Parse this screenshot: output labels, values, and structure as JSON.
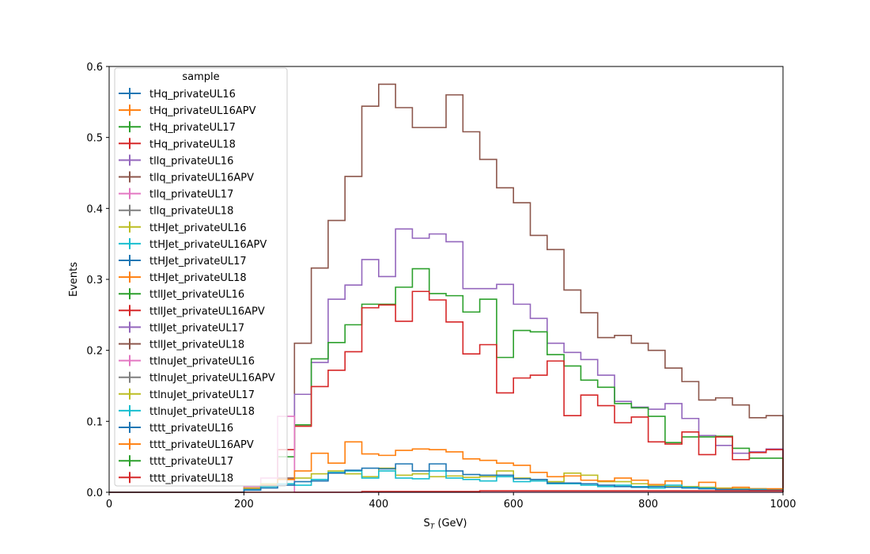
{
  "chart_data": {
    "type": "line",
    "style": "step-histogram",
    "xlabel": "S",
    "xlabel_sub": "T",
    "xlabel_unit": " (GeV)",
    "ylabel": "Events",
    "xlim": [
      0,
      1000
    ],
    "ylim": [
      0,
      0.6
    ],
    "xticks": [
      0,
      200,
      400,
      600,
      800,
      1000
    ],
    "yticks": [
      0.0,
      0.1,
      0.2,
      0.3,
      0.4,
      0.5,
      0.6
    ],
    "ytick_labels": [
      "0.0",
      "0.1",
      "0.2",
      "0.3",
      "0.4",
      "0.5",
      "0.6"
    ],
    "grid": false,
    "legend": {
      "title": "sample",
      "placement": "upper-left",
      "entries": [
        {
          "name": "tHq_privateUL16",
          "color": "#1f77b4"
        },
        {
          "name": "tHq_privateUL16APV",
          "color": "#ff7f0e"
        },
        {
          "name": "tHq_privateUL17",
          "color": "#2ca02c"
        },
        {
          "name": "tHq_privateUL18",
          "color": "#d62728"
        },
        {
          "name": "tllq_privateUL16",
          "color": "#9467bd"
        },
        {
          "name": "tllq_privateUL16APV",
          "color": "#8c564b"
        },
        {
          "name": "tllq_privateUL17",
          "color": "#e377c2"
        },
        {
          "name": "tllq_privateUL18",
          "color": "#7f7f7f"
        },
        {
          "name": "ttHJet_privateUL16",
          "color": "#bcbd22"
        },
        {
          "name": "ttHJet_privateUL16APV",
          "color": "#17becf"
        },
        {
          "name": "ttHJet_privateUL17",
          "color": "#1f77b4"
        },
        {
          "name": "ttHJet_privateUL18",
          "color": "#ff7f0e"
        },
        {
          "name": "ttllJet_privateUL16",
          "color": "#2ca02c"
        },
        {
          "name": "ttllJet_privateUL16APV",
          "color": "#d62728"
        },
        {
          "name": "ttllJet_privateUL17",
          "color": "#9467bd"
        },
        {
          "name": "ttllJet_privateUL18",
          "color": "#8c564b"
        },
        {
          "name": "ttlnuJet_privateUL16",
          "color": "#e377c2"
        },
        {
          "name": "ttlnuJet_privateUL16APV",
          "color": "#7f7f7f"
        },
        {
          "name": "ttlnuJet_privateUL17",
          "color": "#bcbd22"
        },
        {
          "name": "ttlnuJet_privateUL18",
          "color": "#17becf"
        },
        {
          "name": "tttt_privateUL16",
          "color": "#1f77b4"
        },
        {
          "name": "tttt_privateUL16APV",
          "color": "#ff7f0e"
        },
        {
          "name": "tttt_privateUL17",
          "color": "#2ca02c"
        },
        {
          "name": "tttt_privateUL18",
          "color": "#d62728"
        }
      ]
    },
    "bin_edges": [
      0,
      25,
      50,
      75,
      100,
      125,
      150,
      175,
      200,
      225,
      250,
      275,
      300,
      325,
      350,
      375,
      400,
      425,
      450,
      475,
      500,
      525,
      550,
      575,
      600,
      625,
      650,
      675,
      700,
      725,
      750,
      775,
      800,
      825,
      850,
      875,
      900,
      925,
      950,
      975,
      1000
    ],
    "series": [
      {
        "name": "ttllJet_privateUL18",
        "color": "#8c564b",
        "values": [
          0,
          0,
          0,
          0,
          0,
          0,
          0,
          0,
          0.005,
          0.01,
          0.02,
          0.21,
          0.316,
          0.383,
          0.445,
          0.544,
          0.575,
          0.542,
          0.514,
          0.514,
          0.56,
          0.508,
          0.469,
          0.429,
          0.408,
          0.362,
          0.342,
          0.285,
          0.253,
          0.218,
          0.221,
          0.21,
          0.2,
          0.175,
          0.156,
          0.13,
          0.133,
          0.123,
          0.105,
          0.108
        ]
      },
      {
        "name": "ttllJet_privateUL17",
        "color": "#9467bd",
        "values": [
          0,
          0,
          0,
          0,
          0,
          0,
          0,
          0,
          0.004,
          0.01,
          0.06,
          0.138,
          0.183,
          0.272,
          0.292,
          0.328,
          0.304,
          0.371,
          0.358,
          0.364,
          0.353,
          0.287,
          0.287,
          0.293,
          0.265,
          0.245,
          0.21,
          0.197,
          0.187,
          0.165,
          0.128,
          0.12,
          0.117,
          0.125,
          0.104,
          0.08,
          0.066,
          0.055,
          0.057,
          0.061
        ]
      },
      {
        "name": "ttllJet_privateUL16",
        "color": "#2ca02c",
        "values": [
          0,
          0,
          0,
          0,
          0,
          0,
          0,
          0,
          0.004,
          0.01,
          0.05,
          0.095,
          0.188,
          0.211,
          0.236,
          0.265,
          0.265,
          0.289,
          0.315,
          0.28,
          0.277,
          0.254,
          0.272,
          0.19,
          0.228,
          0.226,
          0.194,
          0.178,
          0.158,
          0.148,
          0.125,
          0.119,
          0.107,
          0.07,
          0.078,
          0.078,
          0.079,
          0.062,
          0.048,
          0.048
        ]
      },
      {
        "name": "ttllJet_privateUL16APV",
        "color": "#d62728",
        "values": [
          0,
          0,
          0,
          0,
          0,
          0,
          0,
          0,
          0.004,
          0.01,
          0.06,
          0.093,
          0.149,
          0.172,
          0.198,
          0.26,
          0.264,
          0.241,
          0.283,
          0.271,
          0.24,
          0.195,
          0.208,
          0.14,
          0.161,
          0.165,
          0.185,
          0.108,
          0.137,
          0.122,
          0.098,
          0.106,
          0.071,
          0.068,
          0.085,
          0.053,
          0.078,
          0.046,
          0.056,
          0.06
        ]
      },
      {
        "name": "tllq_privateUL17",
        "color": "#e377c2",
        "values": [
          0,
          0,
          0,
          0,
          0,
          0,
          0,
          0,
          0.008,
          0.02,
          0.107,
          0,
          0,
          0,
          0,
          0,
          0,
          0,
          0,
          0,
          0,
          0,
          0,
          0,
          0,
          0,
          0,
          0,
          0,
          0,
          0,
          0,
          0,
          0,
          0,
          0,
          0,
          0,
          0,
          0
        ]
      },
      {
        "name": "ttHJet_privateUL16",
        "color": "#bcbd22",
        "values": [
          0,
          0,
          0,
          0,
          0,
          0,
          0,
          0,
          0.006,
          0.012,
          0.018,
          0.02,
          0.026,
          0.03,
          0.026,
          0.022,
          0.034,
          0.024,
          0.026,
          0.022,
          0.023,
          0.021,
          0.022,
          0.03,
          0.02,
          0.018,
          0.015,
          0.027,
          0.024,
          0.015,
          0.015,
          0.012,
          0.009,
          0.008,
          0.008,
          0.007,
          0.006,
          0.005,
          0.005,
          0.004
        ]
      },
      {
        "name": "ttHJet_privateUL18",
        "color": "#ff7f0e",
        "values": [
          0,
          0,
          0,
          0,
          0,
          0,
          0,
          0,
          0.005,
          0.01,
          0.018,
          0.03,
          0.055,
          0.041,
          0.071,
          0.054,
          0.052,
          0.059,
          0.061,
          0.06,
          0.057,
          0.047,
          0.045,
          0.041,
          0.038,
          0.028,
          0.022,
          0.023,
          0.017,
          0.016,
          0.02,
          0.017,
          0.011,
          0.016,
          0.007,
          0.014,
          0.005,
          0.007,
          0.005,
          0.005
        ]
      },
      {
        "name": "ttHJet_privateUL16APV",
        "color": "#17becf",
        "values": [
          0,
          0,
          0,
          0,
          0,
          0,
          0,
          0,
          0.004,
          0.008,
          0.012,
          0.01,
          0.018,
          0.028,
          0.03,
          0.02,
          0.03,
          0.02,
          0.019,
          0.03,
          0.02,
          0.018,
          0.016,
          0.022,
          0.015,
          0.016,
          0.012,
          0.012,
          0.01,
          0.008,
          0.01,
          0.008,
          0.006,
          0.01,
          0.007,
          0.006,
          0.004,
          0.004,
          0.004,
          0.003
        ]
      },
      {
        "name": "ttHJet_privateUL17",
        "color": "#1f77b4",
        "values": [
          0,
          0,
          0,
          0,
          0,
          0,
          0,
          0,
          0.003,
          0.006,
          0.01,
          0.015,
          0.016,
          0.027,
          0.031,
          0.034,
          0.033,
          0.04,
          0.03,
          0.04,
          0.03,
          0.025,
          0.024,
          0.024,
          0.019,
          0.018,
          0.013,
          0.013,
          0.012,
          0.01,
          0.008,
          0.007,
          0.008,
          0.007,
          0.006,
          0.005,
          0.004,
          0.004,
          0.003,
          0.003
        ]
      },
      {
        "name": "tttt_privateUL18",
        "color": "#d62728",
        "values": [
          0,
          0,
          0,
          0,
          0,
          0,
          0,
          0,
          0,
          0,
          0,
          0,
          0,
          0,
          0,
          0.001,
          0.001,
          0.001,
          0.001,
          0.001,
          0.001,
          0.001,
          0.002,
          0.002,
          0.002,
          0.002,
          0.002,
          0.002,
          0.002,
          0.002,
          0.002,
          0.002,
          0.002,
          0.002,
          0.002,
          0.002,
          0.002,
          0.002,
          0.002,
          0.002
        ]
      }
    ]
  }
}
